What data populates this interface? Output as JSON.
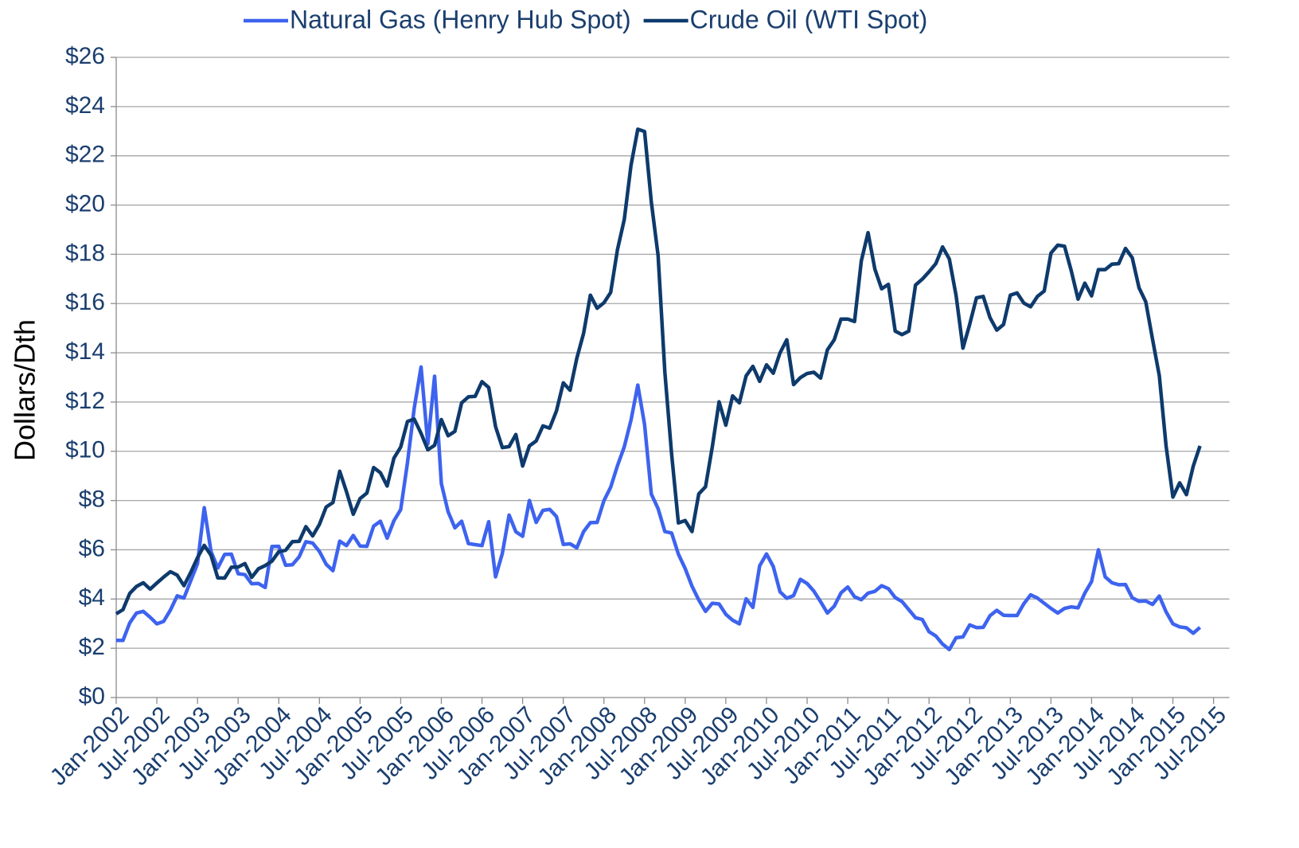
{
  "chart_data": {
    "type": "line",
    "y_label": "Dollars/Dth",
    "categories": [
      "Jan-2002",
      null,
      null,
      null,
      null,
      null,
      "Jul-2002",
      null,
      null,
      null,
      null,
      null,
      "Jan-2003",
      null,
      null,
      null,
      null,
      null,
      "Jul-2003",
      null,
      null,
      null,
      null,
      null,
      "Jan-2004",
      null,
      null,
      null,
      null,
      null,
      "Jul-2004",
      null,
      null,
      null,
      null,
      null,
      "Jan-2005",
      null,
      null,
      null,
      null,
      null,
      "Jul-2005",
      null,
      null,
      null,
      null,
      null,
      "Jan-2006",
      null,
      null,
      null,
      null,
      null,
      "Jul-2006",
      null,
      null,
      null,
      null,
      null,
      "Jan-2007",
      null,
      null,
      null,
      null,
      null,
      "Jul-2007",
      null,
      null,
      null,
      null,
      null,
      "Jan-2008",
      null,
      null,
      null,
      null,
      null,
      "Jul-2008",
      null,
      null,
      null,
      null,
      null,
      "Jan-2009",
      null,
      null,
      null,
      null,
      null,
      "Jul-2009",
      null,
      null,
      null,
      null,
      null,
      "Jan-2010",
      null,
      null,
      null,
      null,
      null,
      "Jul-2010",
      null,
      null,
      null,
      null,
      null,
      "Jan-2011",
      null,
      null,
      null,
      null,
      null,
      "Jul-2011",
      null,
      null,
      null,
      null,
      null,
      "Jan-2012",
      null,
      null,
      null,
      null,
      null,
      "Jul-2012",
      null,
      null,
      null,
      null,
      null,
      "Jan-2013",
      null,
      null,
      null,
      null,
      null,
      "Jul-2013",
      null,
      null,
      null,
      null,
      null,
      "Jan-2014",
      null,
      null,
      null,
      null,
      null,
      "Jul-2014",
      null,
      null,
      null,
      null,
      null,
      "Jan-2015",
      null,
      null,
      null,
      null,
      null,
      "Jul-2015"
    ],
    "series": [
      {
        "name": "Natural Gas (Henry Hub Spot)",
        "color": "#3d63ef",
        "values": [
          2.32,
          2.32,
          3.03,
          3.43,
          3.5,
          3.26,
          2.99,
          3.09,
          3.55,
          4.13,
          4.04,
          4.74,
          5.43,
          7.71,
          5.93,
          5.26,
          5.81,
          5.82,
          5.03,
          4.99,
          4.62,
          4.63,
          4.47,
          6.13,
          6.14,
          5.37,
          5.39,
          5.71,
          6.33,
          6.27,
          5.93,
          5.41,
          5.15,
          6.35,
          6.17,
          6.58,
          6.15,
          6.14,
          6.96,
          7.16,
          6.47,
          7.18,
          7.63,
          9.53,
          11.75,
          13.42,
          10.3,
          13.05,
          8.69,
          7.54,
          6.89,
          7.16,
          6.25,
          6.21,
          6.17,
          7.14,
          4.9,
          5.85,
          7.41,
          6.73,
          6.55,
          8.0,
          7.11,
          7.6,
          7.64,
          7.35,
          6.22,
          6.24,
          6.08,
          6.74,
          7.1,
          7.11,
          7.99,
          8.54,
          9.41,
          10.18,
          11.27,
          12.69,
          11.09,
          8.26,
          7.67,
          6.74,
          6.68,
          5.82,
          5.24,
          4.52,
          3.96,
          3.5,
          3.83,
          3.8,
          3.38,
          3.14,
          2.99,
          4.01,
          3.66,
          5.35,
          5.83,
          5.32,
          4.29,
          4.03,
          4.14,
          4.8,
          4.63,
          4.32,
          3.89,
          3.43,
          3.71,
          4.25,
          4.49,
          4.09,
          3.97,
          4.24,
          4.31,
          4.54,
          4.42,
          4.06,
          3.9,
          3.57,
          3.24,
          3.17,
          2.67,
          2.5,
          2.17,
          1.95,
          2.43,
          2.46,
          2.95,
          2.84,
          2.85,
          3.32,
          3.54,
          3.34,
          3.33,
          3.33,
          3.81,
          4.17,
          4.04,
          3.83,
          3.62,
          3.43,
          3.62,
          3.68,
          3.64,
          4.24,
          4.71,
          6.0,
          4.9,
          4.66,
          4.58,
          4.59,
          4.05,
          3.91,
          3.92,
          3.78,
          4.12,
          3.48,
          2.99,
          2.87,
          2.83,
          2.61,
          2.85,
          null,
          null
        ]
      },
      {
        "name": "Crude Oil (WTI Spot)",
        "color": "#0e3a6c",
        "values": [
          3.4,
          3.57,
          4.23,
          4.51,
          4.66,
          4.4,
          4.65,
          4.89,
          5.11,
          4.97,
          4.54,
          5.08,
          5.68,
          6.18,
          5.78,
          4.86,
          4.85,
          5.29,
          5.3,
          5.44,
          4.88,
          5.23,
          5.36,
          5.54,
          5.92,
          5.98,
          6.33,
          6.34,
          6.94,
          6.56,
          7.03,
          7.74,
          7.92,
          9.19,
          8.36,
          7.44,
          8.08,
          8.3,
          9.34,
          9.13,
          8.59,
          9.72,
          10.17,
          11.21,
          11.31,
          10.73,
          10.06,
          10.24,
          11.29,
          10.63,
          10.81,
          11.97,
          12.21,
          12.23,
          12.83,
          12.59,
          11.0,
          10.15,
          10.19,
          10.68,
          9.4,
          10.22,
          10.42,
          11.03,
          10.94,
          11.64,
          12.78,
          12.48,
          13.78,
          14.79,
          16.34,
          15.81,
          16.03,
          16.45,
          18.18,
          19.41,
          21.62,
          23.08,
          22.99,
          20.12,
          17.95,
          13.21,
          9.88,
          7.09,
          7.19,
          6.74,
          8.27,
          8.56,
          10.18,
          12.01,
          11.06,
          12.25,
          11.97,
          13.06,
          13.45,
          12.84,
          13.51,
          13.17,
          14.0,
          14.53,
          12.71,
          12.99,
          13.16,
          13.21,
          12.97,
          14.12,
          14.53,
          15.37,
          15.37,
          15.27,
          17.73,
          18.88,
          17.4,
          16.6,
          16.78,
          14.88,
          14.74,
          14.88,
          16.75,
          16.99,
          17.29,
          17.62,
          18.3,
          17.81,
          16.32,
          14.19,
          15.16,
          16.23,
          16.29,
          15.43,
          14.92,
          15.15,
          16.34,
          16.43,
          16.02,
          15.87,
          16.29,
          16.51,
          18.05,
          18.37,
          18.33,
          17.33,
          16.18,
          16.83,
          16.31,
          17.38,
          17.38,
          17.6,
          17.62,
          18.24,
          17.86,
          16.64,
          16.07,
          14.55,
          13.07,
          10.22,
          8.14,
          8.72,
          8.24,
          9.39,
          10.22,
          null,
          null
        ]
      }
    ],
    "ylim": [
      0,
      26
    ],
    "yticks": [
      {
        "value": 0,
        "label": "$0"
      },
      {
        "value": 2,
        "label": "$2"
      },
      {
        "value": 4,
        "label": "$4"
      },
      {
        "value": 6,
        "label": "$6"
      },
      {
        "value": 8,
        "label": "$8"
      },
      {
        "value": 10,
        "label": "$10"
      },
      {
        "value": 12,
        "label": "$12"
      },
      {
        "value": 14,
        "label": "$14"
      },
      {
        "value": 16,
        "label": "$16"
      },
      {
        "value": 18,
        "label": "$18"
      },
      {
        "value": 20,
        "label": "$20"
      },
      {
        "value": 22,
        "label": "$22"
      },
      {
        "value": 24,
        "label": "$24"
      },
      {
        "value": 26,
        "label": "$26"
      }
    ],
    "grid": true,
    "legend": "top"
  }
}
